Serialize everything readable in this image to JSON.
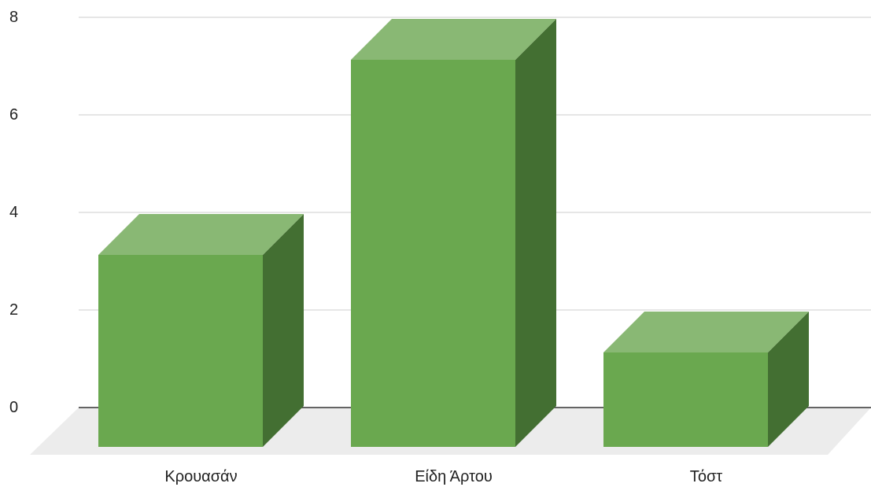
{
  "chart_data": {
    "type": "bar",
    "style": "3d",
    "title": "",
    "xlabel": "",
    "ylabel": "",
    "categories": [
      "Κρουασάν",
      "Είδη Άρτου",
      "Τόστ"
    ],
    "series": [
      {
        "values": [
          4,
          8,
          2
        ]
      }
    ],
    "ylim": [
      0,
      8
    ],
    "yticks": [
      "0",
      "2",
      "4",
      "6",
      "8"
    ],
    "grid": true,
    "legend": "none",
    "colors": {
      "bar_front": "#6aa84f",
      "bar_top": "#89b874",
      "bar_side": "#436f32",
      "floor": "#ececec",
      "gridline": "#cccccc",
      "baseline": "#333333"
    }
  }
}
